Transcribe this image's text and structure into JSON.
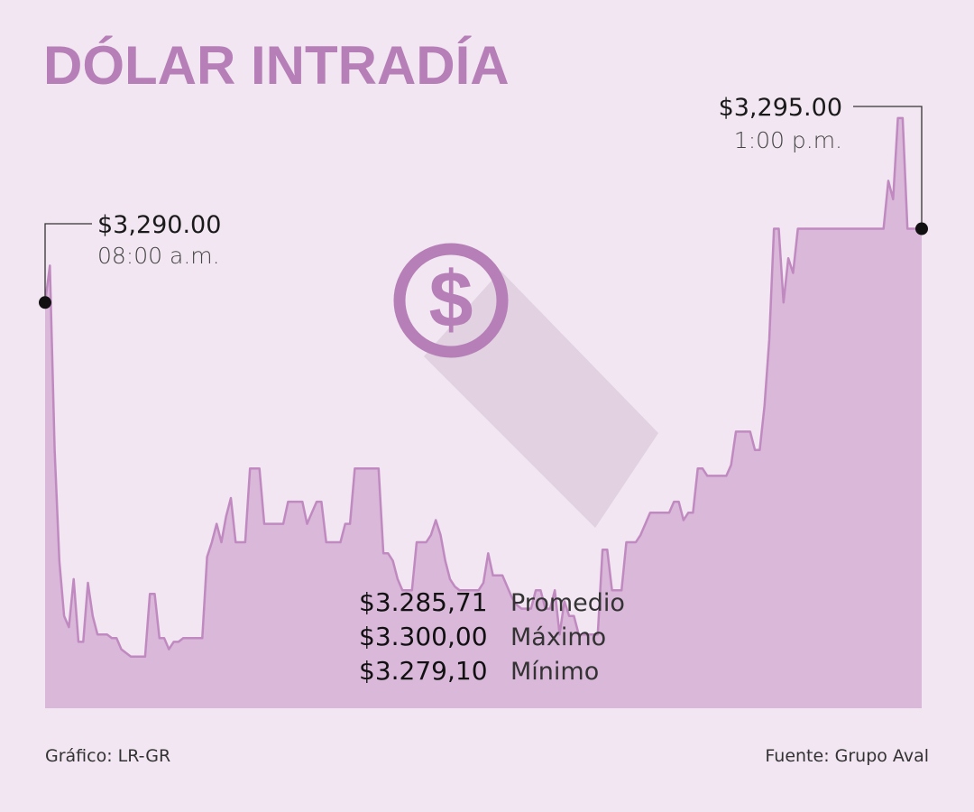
{
  "chart_data": {
    "type": "area",
    "title": "DÓLAR INTRADÍA",
    "unit": "COP",
    "ylim": [
      3279,
      3296
    ],
    "values": [
      3290.0,
      3291.0,
      3286.0,
      3283.0,
      3281.5,
      3281.2,
      3282.5,
      3280.8,
      3280.8,
      3282.4,
      3281.5,
      3281.0,
      3281.0,
      3281.0,
      3280.9,
      3280.9,
      3280.6,
      3280.5,
      3280.4,
      3280.4,
      3280.4,
      3280.4,
      3282.1,
      3282.1,
      3280.9,
      3280.9,
      3280.6,
      3280.8,
      3280.8,
      3280.9,
      3280.9,
      3280.9,
      3280.9,
      3280.9,
      3283.1,
      3283.5,
      3284.0,
      3283.5,
      3284.2,
      3284.7,
      3283.5,
      3283.5,
      3283.5,
      3285.5,
      3285.5,
      3285.5,
      3284.0,
      3284.0,
      3284.0,
      3284.0,
      3284.0,
      3284.6,
      3284.6,
      3284.6,
      3284.6,
      3284.0,
      3284.3,
      3284.6,
      3284.6,
      3283.5,
      3283.5,
      3283.5,
      3283.5,
      3284.0,
      3284.0,
      3285.5,
      3285.5,
      3285.5,
      3285.5,
      3285.5,
      3285.5,
      3283.2,
      3283.2,
      3283.0,
      3282.5,
      3282.2,
      3282.2,
      3282.2,
      3283.5,
      3283.5,
      3283.5,
      3283.7,
      3284.1,
      3283.7,
      3283.0,
      3282.5,
      3282.3,
      3282.2,
      3282.2,
      3282.2,
      3282.2,
      3282.2,
      3282.4,
      3283.2,
      3282.6,
      3282.6,
      3282.6,
      3282.3,
      3282.0,
      3281.8,
      3281.7,
      3281.7,
      3281.7,
      3282.2,
      3282.2,
      3281.7,
      3281.7,
      3282.2,
      3281.0,
      3281.9,
      3281.5,
      3281.5,
      3281.0,
      3281.0,
      3281.0,
      3281.0,
      3281.0,
      3283.3,
      3283.3,
      3282.2,
      3282.2,
      3282.2,
      3283.5,
      3283.5,
      3283.5,
      3283.7,
      3284.0,
      3284.3,
      3284.3,
      3284.3,
      3284.3,
      3284.3,
      3284.6,
      3284.6,
      3284.1,
      3284.3,
      3284.3,
      3285.5,
      3285.5,
      3285.3,
      3285.3,
      3285.3,
      3285.3,
      3285.3,
      3285.6,
      3286.5,
      3286.5,
      3286.5,
      3286.5,
      3286.0,
      3286.0,
      3287.2,
      3289.0,
      3292.0,
      3292.0,
      3290.0,
      3291.2,
      3290.8,
      3292.0,
      3292.0,
      3292.0,
      3292.0,
      3292.0,
      3292.0,
      3292.0,
      3292.0,
      3292.0,
      3292.0,
      3292.0,
      3292.0,
      3292.0,
      3292.0,
      3292.0,
      3292.0,
      3292.0,
      3292.0,
      3292.0,
      3293.3,
      3292.8,
      3295.0,
      3295.0,
      3292.0,
      3292.0,
      3292.0,
      3292.0
    ],
    "markers": [
      {
        "value": "$3,290.00",
        "time": "08:00 a.m."
      },
      {
        "value": "$3,295.00",
        "time": "1:00 p.m."
      }
    ],
    "stats": [
      {
        "value": "$3.285,71",
        "label": "Promedio"
      },
      {
        "value": "$3.300,00",
        "label": "Máximo"
      },
      {
        "value": "$3.279,10",
        "label": "Mínimo"
      }
    ]
  },
  "footer": {
    "credit": "Gráfico: LR-GR",
    "source": "Fuente: Grupo Aval"
  },
  "colors": {
    "background": "#f1e6f1",
    "accent": "#b77fb7",
    "area_fill": "#d9b8d9",
    "line": "#c08ac0"
  },
  "icon": "dollar-coin-icon"
}
